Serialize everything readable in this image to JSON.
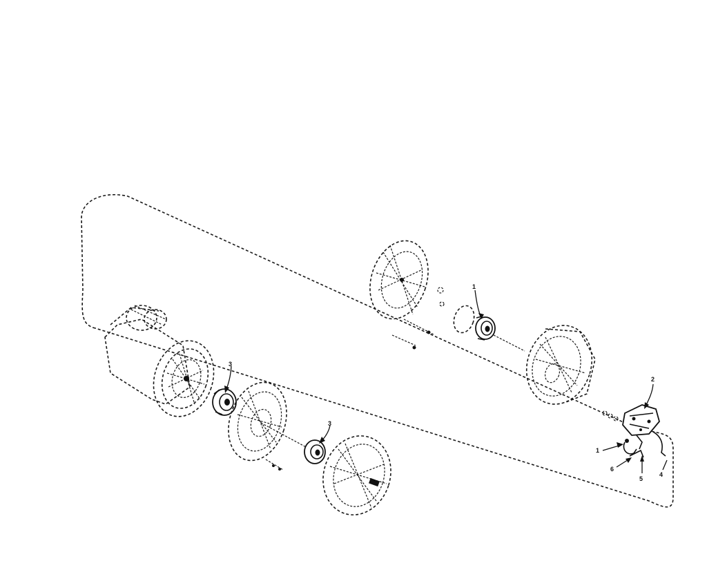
{
  "diagram": {
    "callouts": [
      {
        "id": "c1a",
        "label": "1"
      },
      {
        "id": "c2",
        "label": "2"
      },
      {
        "id": "c3a",
        "label": "3"
      },
      {
        "id": "c3b",
        "label": "3"
      },
      {
        "id": "c1b",
        "label": "1"
      },
      {
        "id": "c4",
        "label": "4"
      },
      {
        "id": "c5",
        "label": "5"
      },
      {
        "id": "c6",
        "label": "6"
      }
    ]
  }
}
